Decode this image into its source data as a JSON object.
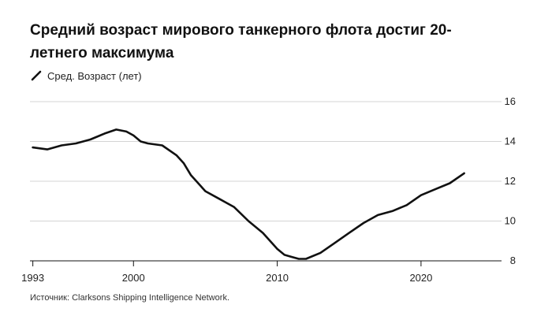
{
  "title": "Средний возраст мирового танкерного флота достиг 20-летнего максимума",
  "legend": {
    "label": "Сред. Возраст (лет)",
    "color": "#111111"
  },
  "source": "Источник: Clarksons Shipping Intelligence Network.",
  "chart_data": {
    "type": "line",
    "xlabel": "",
    "ylabel": "",
    "xlim": [
      1992.8,
      2025.6
    ],
    "ylim": [
      8,
      16
    ],
    "yticks": [
      8,
      10,
      12,
      14,
      16
    ],
    "xticks": [
      1993,
      2000,
      2010,
      2020
    ],
    "grid": "horizontal",
    "y_axis_side": "right",
    "series": [
      {
        "name": "Сред. Возраст (лет)",
        "color": "#111111",
        "x": [
          1993.0,
          1994.0,
          1995.0,
          1996.0,
          1997.0,
          1998.0,
          1998.8,
          1999.5,
          2000.0,
          2000.5,
          2001.0,
          2002.0,
          2003.0,
          2003.5,
          2004.0,
          2005.0,
          2006.0,
          2007.0,
          2008.0,
          2009.0,
          2009.5,
          2010.0,
          2010.5,
          2011.0,
          2011.5,
          2012.0,
          2013.0,
          2014.0,
          2015.0,
          2016.0,
          2017.0,
          2018.0,
          2019.0,
          2020.0,
          2021.0,
          2022.0,
          2023.0
        ],
        "y": [
          13.7,
          13.6,
          13.8,
          13.9,
          14.1,
          14.4,
          14.6,
          14.5,
          14.3,
          14.0,
          13.9,
          13.8,
          13.3,
          12.9,
          12.3,
          11.5,
          11.1,
          10.7,
          10.0,
          9.4,
          9.0,
          8.6,
          8.3,
          8.2,
          8.1,
          8.1,
          8.4,
          8.9,
          9.4,
          9.9,
          10.3,
          10.5,
          10.8,
          11.3,
          11.6,
          11.9,
          12.4
        ]
      }
    ]
  }
}
